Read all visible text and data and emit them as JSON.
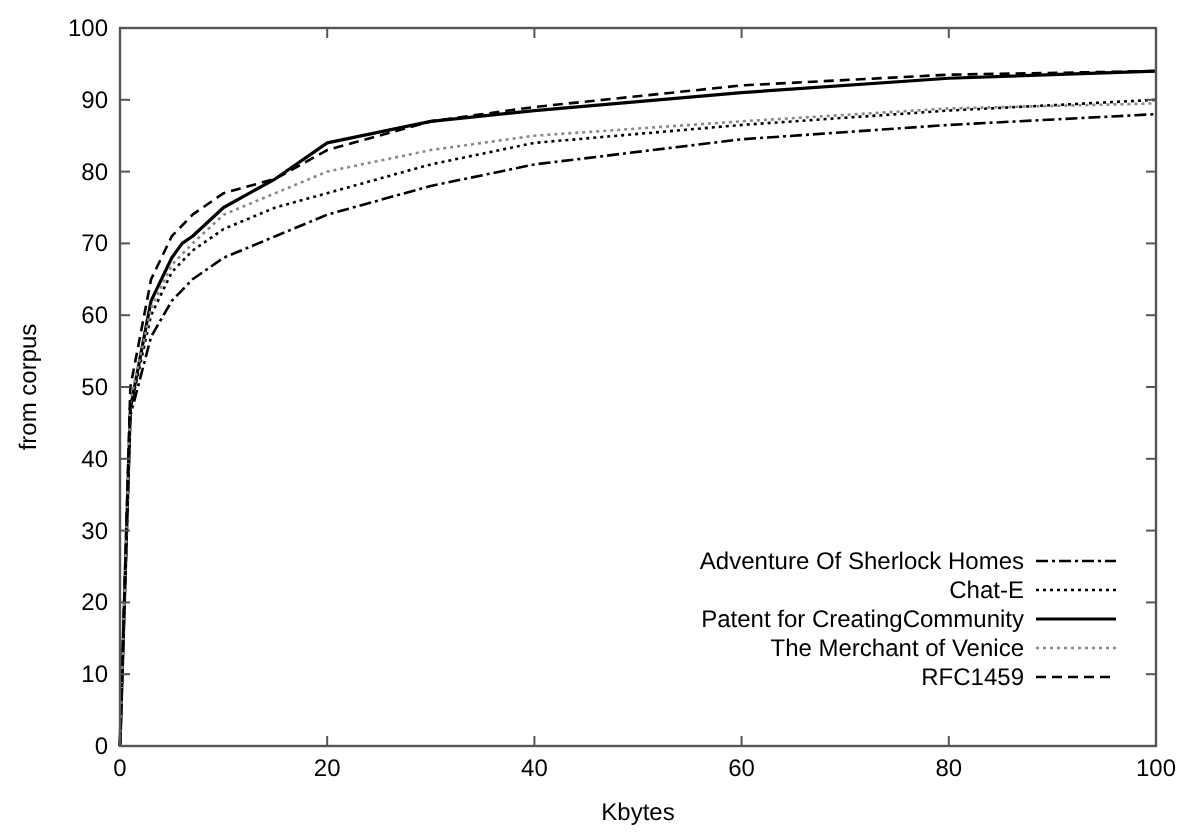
{
  "chart_data": {
    "type": "line",
    "xlabel": "Kbytes",
    "ylabel": "from corpus",
    "xlim": [
      0,
      100
    ],
    "ylim": [
      0,
      100
    ],
    "xticks": [
      0,
      20,
      40,
      60,
      80,
      100
    ],
    "yticks": [
      0,
      10,
      20,
      30,
      40,
      50,
      60,
      70,
      80,
      90,
      100
    ],
    "grid": false,
    "legend": "bottom right",
    "marker": "none",
    "series": [
      {
        "name": "Adventure Of Sherlock Homes",
        "color": "#000000",
        "line_style": "dashdot",
        "x": [
          0,
          1,
          3,
          5,
          7,
          10,
          15,
          20,
          30,
          40,
          60,
          80,
          100
        ],
        "values": [
          0,
          46,
          57,
          62,
          65,
          68,
          71,
          74,
          78,
          81,
          84.5,
          86.5,
          88
        ]
      },
      {
        "name": "Chat-E",
        "color": "#000000",
        "line_style": "dotted",
        "x": [
          0,
          1,
          3,
          5,
          7,
          10,
          15,
          20,
          30,
          40,
          60,
          80,
          100
        ],
        "values": [
          0,
          47,
          60,
          66,
          69,
          72,
          75,
          77,
          81,
          84,
          86.5,
          88.5,
          90
        ]
      },
      {
        "name": "Patent for CreatingCommunity",
        "color": "#000000",
        "line_style": "solid",
        "x": [
          0,
          1,
          3,
          5,
          6,
          7,
          10,
          15,
          20,
          30,
          40,
          60,
          80,
          100
        ],
        "values": [
          0,
          47,
          62,
          68,
          70,
          71,
          75,
          79,
          84,
          87,
          88.5,
          91,
          93,
          94
        ]
      },
      {
        "name": "The Merchant of Venice",
        "color": "#888888",
        "line_style": "dotted",
        "x": [
          0,
          1,
          3,
          5,
          7,
          10,
          15,
          20,
          30,
          40,
          60,
          80,
          100
        ],
        "values": [
          0,
          48,
          61,
          67,
          70,
          74,
          77,
          80,
          83,
          85,
          87,
          88.8,
          89.5
        ]
      },
      {
        "name": "RFC1459",
        "color": "#000000",
        "line_style": "dashed",
        "x": [
          0,
          1,
          3,
          5,
          7,
          10,
          15,
          20,
          30,
          40,
          60,
          80,
          100
        ],
        "values": [
          0,
          50,
          65,
          71,
          74,
          77,
          79,
          83,
          87,
          89,
          92,
          93.5,
          94
        ]
      }
    ]
  }
}
